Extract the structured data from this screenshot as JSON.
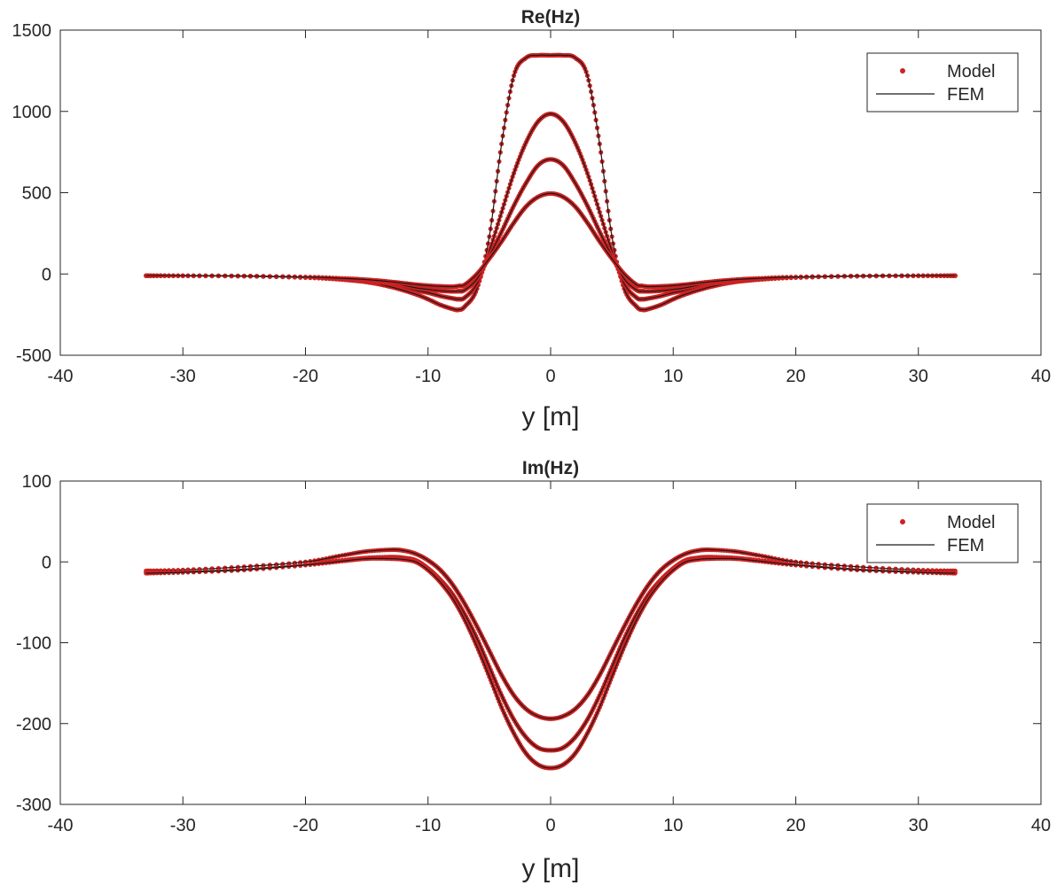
{
  "chart_data": [
    {
      "type": "line",
      "title": "Re(Hz)",
      "xlabel": "y [m]",
      "ylabel": "",
      "xlim": [
        -40,
        40
      ],
      "ylim": [
        -500,
        1500
      ],
      "xticks": [
        -40,
        -30,
        -20,
        -10,
        0,
        10,
        20,
        30,
        40
      ],
      "yticks": [
        -500,
        0,
        500,
        1000,
        1500
      ],
      "xtick_labels": [
        "-40",
        "-30",
        "-20",
        "-10",
        "0",
        "10",
        "20",
        "30",
        "40"
      ],
      "ytick_labels": [
        "-500",
        "0",
        "500",
        "1000",
        "1500"
      ],
      "grid": false,
      "legend_position": "top-right",
      "legend": [
        {
          "label": "Model",
          "style": "markers",
          "color": "#cc2222"
        },
        {
          "label": "FEM",
          "style": "line",
          "color": "#1a1a1a"
        }
      ],
      "x": [
        -33,
        -30,
        -25,
        -20,
        -17,
        -15,
        -13,
        -11,
        -10,
        -9,
        -8,
        -7.5,
        -7,
        -6,
        -5,
        -4,
        -3,
        -2,
        -1,
        0,
        1,
        2,
        3,
        4,
        5,
        6,
        7,
        7.5,
        8,
        9,
        10,
        11,
        13,
        15,
        17,
        20,
        25,
        30,
        33
      ],
      "series": [
        {
          "values": [
            -12,
            -12,
            -14,
            -22,
            -35,
            -50,
            -80,
            -125,
            -155,
            -190,
            -215,
            -220,
            -200,
            -90,
            230,
            800,
            1220,
            1330,
            1345,
            1345,
            1345,
            1330,
            1220,
            800,
            230,
            -90,
            -200,
            -220,
            -215,
            -190,
            -155,
            -125,
            -80,
            -50,
            -35,
            -22,
            -14,
            -12,
            -12
          ]
        },
        {
          "values": [
            -10,
            -11,
            -13,
            -22,
            -32,
            -45,
            -62,
            -100,
            -115,
            -135,
            -150,
            -155,
            -145,
            -60,
            140,
            380,
            620,
            810,
            940,
            985,
            940,
            810,
            620,
            380,
            140,
            -60,
            -145,
            -155,
            -150,
            -135,
            -115,
            -100,
            -62,
            -45,
            -32,
            -22,
            -13,
            -11,
            -10
          ]
        },
        {
          "values": [
            -10,
            -11,
            -13,
            -20,
            -30,
            -40,
            -55,
            -85,
            -95,
            -103,
            -107,
            -106,
            -98,
            -30,
            110,
            260,
            420,
            560,
            670,
            705,
            670,
            560,
            420,
            260,
            110,
            -30,
            -98,
            -106,
            -107,
            -103,
            -95,
            -85,
            -55,
            -40,
            -30,
            -20,
            -13,
            -11,
            -10
          ]
        },
        {
          "values": [
            -10,
            -10,
            -12,
            -18,
            -27,
            -35,
            -48,
            -65,
            -72,
            -76,
            -78,
            -74,
            -66,
            0,
            95,
            200,
            315,
            415,
            475,
            495,
            475,
            415,
            315,
            200,
            95,
            0,
            -66,
            -74,
            -78,
            -76,
            -72,
            -65,
            -48,
            -35,
            -27,
            -18,
            -12,
            -10,
            -10
          ]
        }
      ]
    },
    {
      "type": "line",
      "title": "Im(Hz)",
      "xlabel": "y [m]",
      "ylabel": "",
      "xlim": [
        -40,
        40
      ],
      "ylim": [
        -300,
        100
      ],
      "xticks": [
        -40,
        -30,
        -20,
        -10,
        0,
        10,
        20,
        30,
        40
      ],
      "yticks": [
        -300,
        -200,
        -100,
        0,
        100
      ],
      "xtick_labels": [
        "-40",
        "-30",
        "-20",
        "-10",
        "0",
        "10",
        "20",
        "30",
        "40"
      ],
      "ytick_labels": [
        "-300",
        "-200",
        "-100",
        "0",
        "100"
      ],
      "grid": false,
      "legend_position": "top-right",
      "legend": [
        {
          "label": "Model",
          "style": "markers",
          "color": "#cc2222"
        },
        {
          "label": "FEM",
          "style": "line",
          "color": "#1a1a1a"
        }
      ],
      "x": [
        -33,
        -30,
        -25,
        -20,
        -17,
        -15,
        -13,
        -12,
        -11,
        -10,
        -9,
        -8,
        -7,
        -6,
        -5,
        -4,
        -3,
        -2,
        -1,
        0,
        1,
        2,
        3,
        4,
        5,
        6,
        7,
        8,
        9,
        10,
        11,
        12,
        13,
        15,
        17,
        20,
        25,
        30,
        33
      ],
      "series": [
        {
          "values": [
            -11,
            -10,
            -6,
            0,
            8,
            13,
            15,
            14,
            10,
            2,
            -10,
            -28,
            -52,
            -80,
            -110,
            -140,
            -165,
            -182,
            -191,
            -194,
            -191,
            -182,
            -165,
            -140,
            -110,
            -80,
            -52,
            -28,
            -10,
            2,
            10,
            14,
            15,
            13,
            8,
            0,
            -6,
            -10,
            -11
          ]
        },
        {
          "values": [
            -13,
            -12,
            -9,
            -3,
            2,
            5,
            6,
            5,
            2,
            -8,
            -22,
            -40,
            -65,
            -95,
            -130,
            -165,
            -195,
            -217,
            -230,
            -233,
            -230,
            -217,
            -195,
            -165,
            -130,
            -95,
            -65,
            -40,
            -22,
            -8,
            2,
            5,
            6,
            5,
            2,
            -3,
            -9,
            -12,
            -13
          ]
        },
        {
          "values": [
            -14,
            -13,
            -10,
            -4,
            1,
            4,
            4,
            3,
            0,
            -10,
            -25,
            -45,
            -72,
            -105,
            -142,
            -180,
            -212,
            -237,
            -251,
            -255,
            -251,
            -237,
            -212,
            -180,
            -142,
            -105,
            -72,
            -45,
            -25,
            -10,
            0,
            3,
            4,
            4,
            1,
            -4,
            -10,
            -13,
            -14
          ]
        }
      ]
    }
  ]
}
